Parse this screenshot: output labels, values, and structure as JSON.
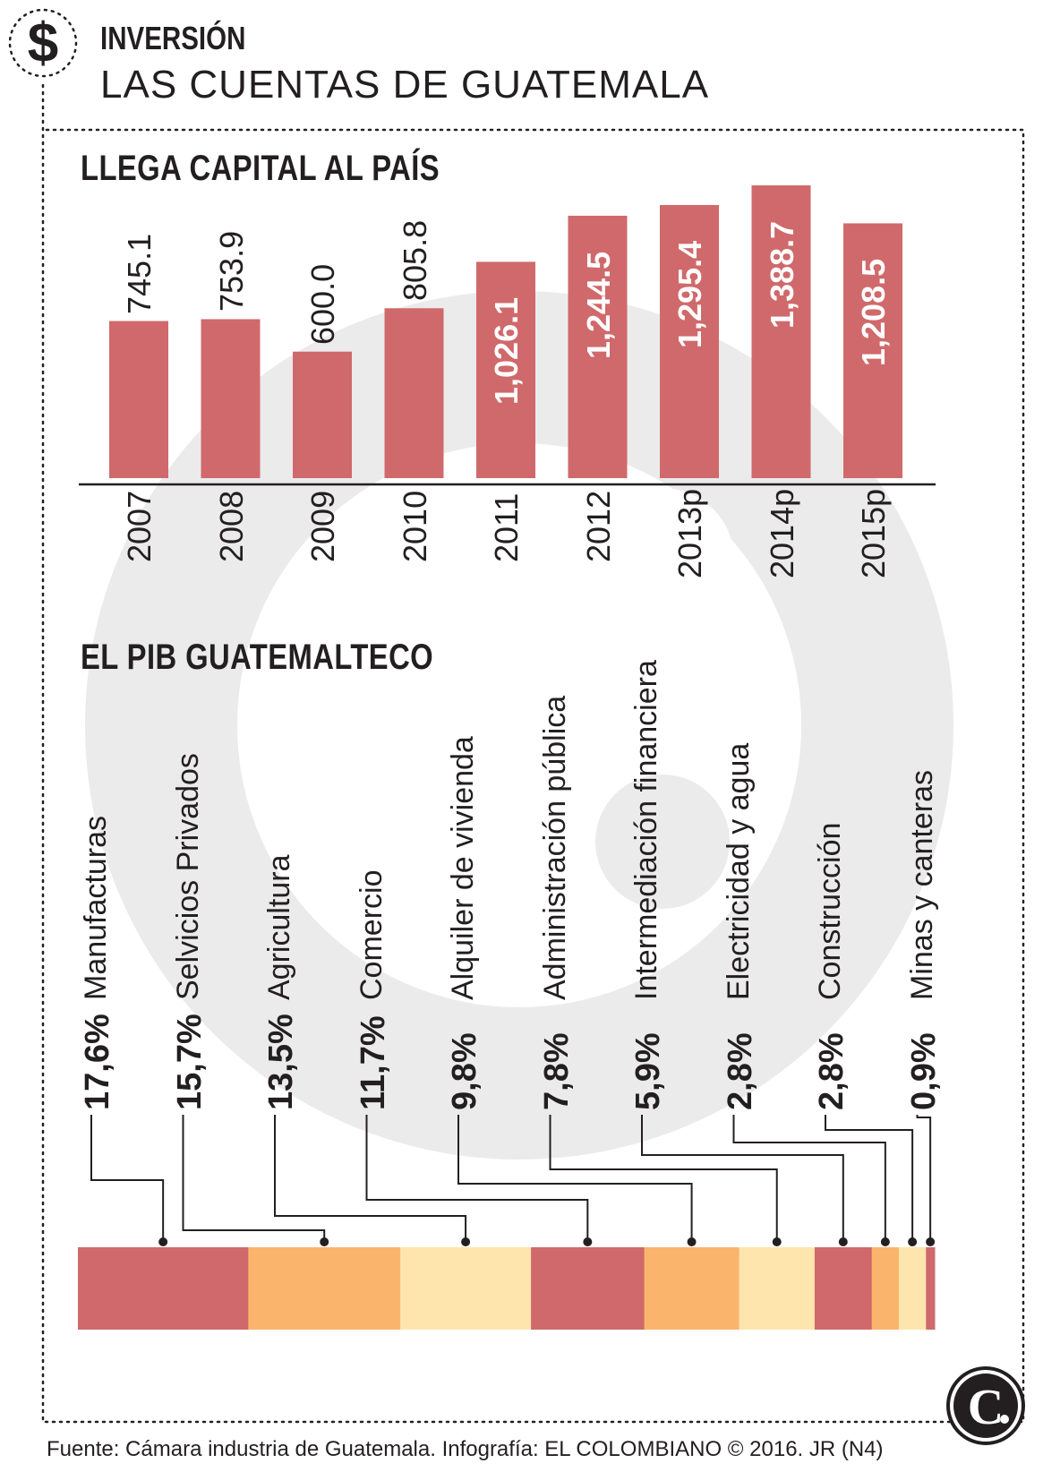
{
  "header": {
    "section": "INVERSIÓN",
    "title": "LAS CUENTAS DE GUATEMALA",
    "icon": "dollar-icon"
  },
  "chart_data": [
    {
      "type": "bar",
      "title": "LLEGA CAPITAL AL PAÍS",
      "categories": [
        "2007",
        "2008",
        "2009",
        "2010",
        "2011",
        "2012",
        "2013p",
        "2014p",
        "2015p"
      ],
      "values": [
        745.1,
        753.9,
        600.0,
        805.8,
        1026.1,
        1244.5,
        1295.4,
        1388.7,
        1208.5
      ],
      "value_labels": [
        "745.1",
        "753.9",
        "600.0",
        "805.8",
        "1,026.1",
        "1,244.5",
        "1,295.4",
        "1,388.7",
        "1,208.5"
      ],
      "ylim": [
        0,
        1460
      ],
      "color": "#d0696b"
    },
    {
      "type": "bar",
      "orientation": "stacked-horizontal",
      "title": "EL PIB GUATEMALTECO",
      "categories": [
        "Manufacturas",
        "Selvicios Privados",
        "Agricultura",
        "Comercio",
        "Alquiler de vivienda",
        "Administración pública",
        "Intermediación financiera",
        "Electricidad y agua",
        "Construcción",
        "Minas y canteras"
      ],
      "values": [
        17.6,
        15.7,
        13.5,
        11.7,
        9.8,
        7.8,
        5.9,
        2.8,
        2.8,
        0.9
      ],
      "value_labels": [
        "17,6%",
        "15,7%",
        "13,5%",
        "11,7%",
        "9,8%",
        "7,8%",
        "5,9%",
        "2,8%",
        "2,8%",
        "0,9%"
      ],
      "colors": [
        "#d0696b",
        "#fbb46c",
        "#fde5ad",
        "#d0696b",
        "#fbb46c",
        "#fde5ad",
        "#d0696b",
        "#fbb46c",
        "#fde5ad",
        "#d0696b"
      ]
    }
  ],
  "footer": {
    "source": "Fuente: Cámara industria de Guatemala. Infografía: EL COLOMBIANO © 2016. JR (N4)"
  },
  "watermark": {
    "icon": "el-colombiano-logo-icon",
    "color": "#ebebec"
  },
  "logo": {
    "icon": "el-colombiano-logo-icon"
  }
}
